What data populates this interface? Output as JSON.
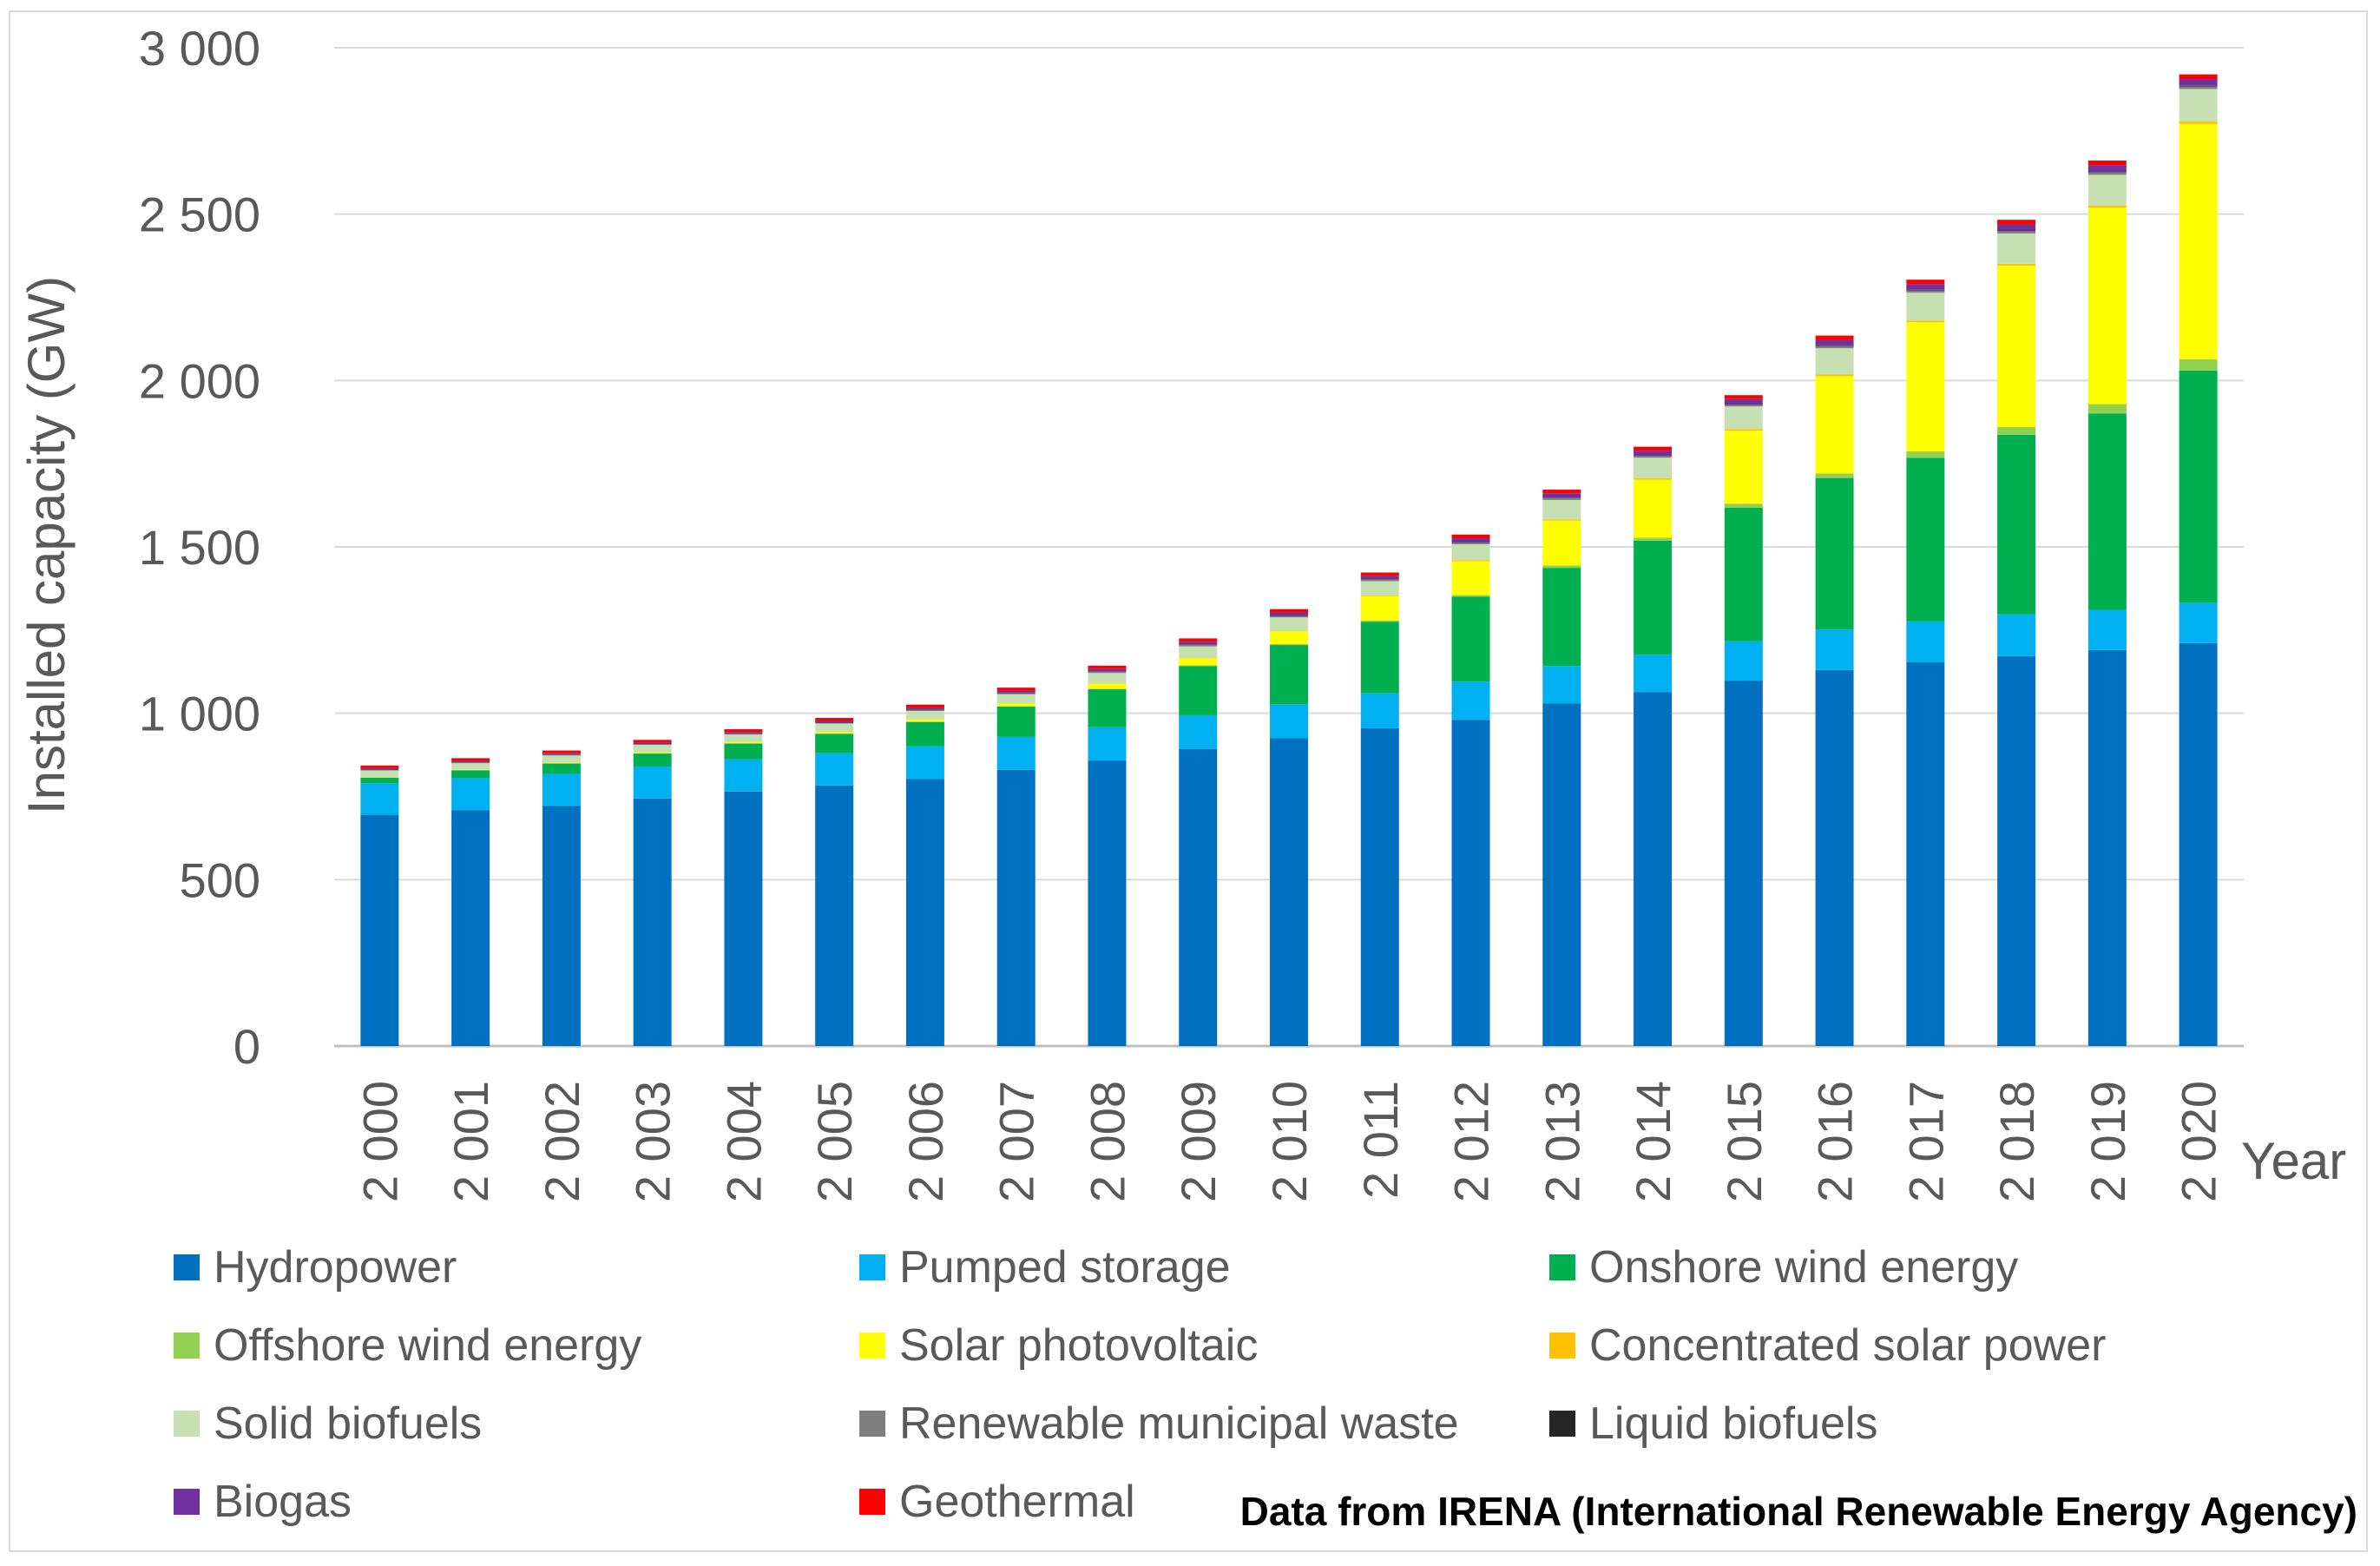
{
  "chart_data": {
    "type": "bar",
    "stacked": true,
    "title": "",
    "ylabel": "Installed capacity (GW)",
    "xlabel": "Year",
    "ylim": [
      0,
      3000
    ],
    "yticks": [
      0,
      500,
      1000,
      1500,
      2000,
      2500,
      3000
    ],
    "ytick_labels": [
      "0",
      "500",
      "1 000",
      "1 500",
      "2 000",
      "2 500",
      "3 000"
    ],
    "grid": true,
    "legend_position": "bottom",
    "categories": [
      "2 000",
      "2 001",
      "2 002",
      "2 003",
      "2 004",
      "2 005",
      "2 006",
      "2 007",
      "2 008",
      "2 009",
      "2 010",
      "2 011",
      "2 012",
      "2 013",
      "2 014",
      "2 015",
      "2 016",
      "2 017",
      "2 018",
      "2 019",
      "2 020"
    ],
    "series": [
      {
        "name": "Hydropower",
        "color": "#0070c0",
        "values": [
          695,
          709,
          722,
          744,
          765,
          783,
          803,
          830,
          858,
          893,
          925,
          955,
          980,
          1030,
          1063,
          1098,
          1130,
          1153,
          1172,
          1190,
          1211
        ]
      },
      {
        "name": "Pumped storage",
        "color": "#00b0f0",
        "values": [
          95,
          96,
          96,
          96,
          97,
          97,
          98,
          99,
          100,
          101,
          102,
          105,
          115,
          112,
          113,
          118,
          122,
          123,
          125,
          121,
          121
        ]
      },
      {
        "name": "Onshore wind energy",
        "color": "#00b050",
        "values": [
          17,
          24,
          31,
          39,
          47,
          58,
          73,
          91,
          114,
          148,
          178,
          215,
          255,
          295,
          343,
          402,
          455,
          492,
          540,
          590,
          698
        ]
      },
      {
        "name": "Offshore wind energy",
        "color": "#92d050",
        "values": [
          0,
          0,
          1,
          1,
          1,
          1,
          1,
          1,
          2,
          2,
          3,
          4,
          5,
          7,
          9,
          12,
          14,
          19,
          23,
          28,
          34
        ]
      },
      {
        "name": "Solar photovoltaic",
        "color": "#ffff00",
        "values": [
          1,
          1,
          2,
          3,
          4,
          5,
          6,
          8,
          15,
          22,
          39,
          73,
          102,
          135,
          174,
          219,
          292,
          388,
          485,
          590,
          707
        ]
      },
      {
        "name": "Concentrated solar power",
        "color": "#ffc000",
        "values": [
          0,
          0,
          0,
          0,
          0,
          0,
          0,
          0,
          1,
          1,
          1,
          2,
          3,
          4,
          4,
          5,
          5,
          5,
          6,
          6,
          7
        ]
      },
      {
        "name": "Solid biofuels",
        "color": "#c6e0b4",
        "values": [
          20,
          20,
          21,
          22,
          22,
          25,
          26,
          28,
          31,
          34,
          40,
          43,
          48,
          58,
          62,
          68,
          79,
          84,
          91,
          93,
          98
        ]
      },
      {
        "name": "Renewable municipal waste",
        "color": "#7f7f7f",
        "values": [
          3,
          3,
          3,
          3,
          3,
          3,
          4,
          4,
          4,
          5,
          5,
          5,
          5,
          6,
          6,
          6,
          7,
          7,
          7,
          8,
          8
        ]
      },
      {
        "name": "Liquid biofuels",
        "color": "#262626",
        "values": [
          1,
          1,
          1,
          1,
          1,
          1,
          1,
          1,
          1,
          1,
          1,
          1,
          1,
          1,
          1,
          1,
          2,
          2,
          2,
          2,
          2
        ]
      },
      {
        "name": "Biogas",
        "color": "#7030a0",
        "values": [
          3,
          3,
          3,
          3,
          4,
          4,
          5,
          6,
          7,
          8,
          9,
          10,
          12,
          13,
          14,
          15,
          16,
          17,
          18,
          19,
          20
        ]
      },
      {
        "name": "Geothermal",
        "color": "#ff0000",
        "values": [
          8,
          8,
          8,
          8,
          8,
          9,
          9,
          9,
          10,
          10,
          10,
          10,
          11,
          11,
          12,
          12,
          13,
          13,
          14,
          14,
          14
        ]
      }
    ]
  },
  "source_note": "Data from IRENA (International Renewable Energy Agency)"
}
